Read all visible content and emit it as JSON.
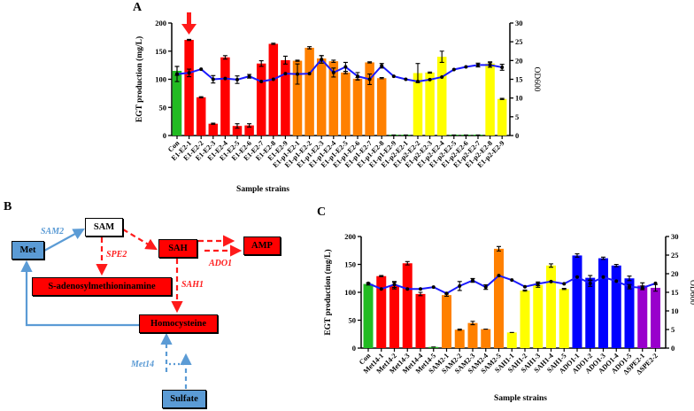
{
  "panels": {
    "a": "A",
    "b": "B",
    "c": "C"
  },
  "colors": {
    "control": "#22bb22",
    "red": "#ff0000",
    "orange": "#ff8000",
    "yellow": "#ffff00",
    "blue": "#0000ff",
    "purple": "#9900cc",
    "od_line": "#1a1aff",
    "low": "#22bb22"
  },
  "pathway": {
    "nodes": {
      "sam": "SAM",
      "met": "Met",
      "sah": "SAH",
      "amp": "AMP",
      "sadm": "S-adenosylmethioninamine",
      "hcy": "Homocysteine",
      "sulfate": "Sulfate"
    },
    "enzymes": {
      "sam2": "SAM2",
      "spe2": "SPE2",
      "ado1": "ADO1",
      "sah1": "SAH1",
      "met14": "Met14"
    }
  },
  "chart_data": [
    {
      "id": "A",
      "type": "bar+line",
      "ylabel": "EGT production (mg/L)",
      "y2label": "OD600",
      "xlabel": "Sample strains",
      "ylim": [
        0,
        200
      ],
      "yticks": [
        0,
        50,
        100,
        150,
        200
      ],
      "y2lim": [
        0,
        30
      ],
      "y2ticks": [
        0,
        5,
        10,
        15,
        20,
        25,
        30
      ],
      "highlight": "E1-E2-1",
      "categories": [
        "Con",
        "E1-E2-1",
        "E1-E2-2",
        "E1-E2-3",
        "E1-E2-4",
        "E1-E2-5",
        "E1-E2-6",
        "E1-E2-7",
        "E1-E2-8",
        "E1-E2-9",
        "E1-p1-E2-1",
        "E1-p1-E2-2",
        "E1-p1-E2-3",
        "E1-p1-E2-4",
        "E1-p1-E2-5",
        "E1-p1-E2-6",
        "E1-p1-E2-7",
        "E1-p1-E2-8",
        "E1-p1-E2-9",
        "E1-p2-E2-1",
        "E1-p2-E2-2",
        "E1-p2-E2-3",
        "E1-p2-E2-4",
        "E1-p2-E2-5",
        "E1-p2-E2-6",
        "E1-p2-E2-7",
        "E1-p2-E2-8",
        "E1-p2-E2-9"
      ],
      "bar_colors": [
        "control",
        "red",
        "red",
        "red",
        "red",
        "red",
        "red",
        "red",
        "red",
        "red",
        "orange",
        "orange",
        "orange",
        "orange",
        "orange",
        "orange",
        "orange",
        "orange",
        "low",
        "low",
        "yellow",
        "yellow",
        "yellow",
        "low",
        "low",
        "low",
        "yellow",
        "yellow"
      ],
      "egt": [
        115,
        170,
        68,
        21,
        139,
        17,
        18,
        128,
        163,
        134,
        133,
        156,
        137,
        132,
        112,
        101,
        130,
        102,
        1,
        1,
        111,
        112,
        140,
        1,
        1,
        1,
        128,
        65
      ],
      "egt_err": [
        8,
        1,
        1,
        1,
        3,
        4,
        3,
        5,
        1,
        7,
        1,
        2,
        5,
        2,
        2,
        2,
        1,
        1,
        0,
        0,
        17,
        1,
        10,
        0,
        0,
        0,
        3,
        1
      ],
      "od600": [
        16.4,
        16.7,
        17.7,
        15.0,
        15.2,
        14.9,
        15.8,
        14.4,
        15.0,
        16.5,
        16.4,
        16.5,
        20.3,
        16.8,
        18.3,
        15.8,
        15.0,
        18.6,
        15.8,
        15.0,
        14.4,
        14.9,
        15.6,
        17.6,
        18.3,
        18.8,
        18.8,
        18.2
      ],
      "od600_err": [
        2,
        1,
        0.3,
        1,
        0.3,
        1,
        0.5,
        0.3,
        0.3,
        0.3,
        2.7,
        0.3,
        1,
        1.2,
        1.2,
        1,
        1.4,
        0.6,
        0.2,
        0.2,
        0.3,
        0.3,
        0.3,
        0.2,
        0.2,
        0.5,
        0.6,
        0.8
      ]
    },
    {
      "id": "C",
      "type": "bar+line",
      "ylabel": "EGT production (mg/L)",
      "y2label": "OD600",
      "xlabel": "Sample strains",
      "ylim": [
        0,
        200
      ],
      "yticks": [
        0,
        50,
        100,
        150,
        200
      ],
      "y2lim": [
        0,
        30
      ],
      "y2ticks": [
        0,
        5,
        10,
        15,
        20,
        25,
        30
      ],
      "categories": [
        "Con",
        "Met14-1",
        "Met14-2",
        "Met14-3",
        "Met14-4",
        "Met14-5",
        "SAM2-1",
        "SAM2-2",
        "SAM2-3",
        "SAM2-4",
        "SAM2-5",
        "SAH1-1",
        "SAH1-2",
        "SAH1-3",
        "SAH1-4",
        "SAH1-5",
        "ADO1-1",
        "ADO1-2",
        "ADO1-3",
        "ADO1-4",
        "ADO1-5",
        "ΔSPE2-1",
        "ΔSPE2-2"
      ],
      "bar_colors": [
        "control",
        "red",
        "red",
        "red",
        "red",
        "low",
        "orange",
        "orange",
        "orange",
        "orange",
        "orange",
        "yellow",
        "yellow",
        "yellow",
        "yellow",
        "yellow",
        "blue",
        "blue",
        "blue",
        "blue",
        "blue",
        "purple",
        "purple"
      ],
      "egt": [
        115,
        129,
        112,
        152,
        97,
        2,
        95,
        33,
        45,
        34,
        178,
        28,
        103,
        113,
        148,
        106,
        166,
        126,
        161,
        148,
        125,
        112,
        108
      ],
      "egt_err": [
        2,
        1,
        6,
        3,
        3,
        0,
        2,
        1,
        3,
        0,
        4,
        0,
        1,
        4,
        3,
        1,
        3,
        4,
        2,
        2,
        4,
        5,
        6
      ],
      "od600": [
        17.4,
        15.9,
        17.1,
        15.9,
        15.9,
        16.4,
        14.7,
        16.7,
        18.2,
        16.4,
        19.5,
        18.3,
        16.5,
        17.3,
        17.9,
        17.3,
        19.1,
        17.4,
        19.1,
        18.0,
        16.5,
        16.2,
        17.4
      ],
      "od600_err": [
        0.3,
        0.3,
        0.8,
        0.3,
        0.3,
        0.3,
        0.3,
        1.2,
        0.5,
        0.6,
        0.3,
        0.2,
        0.3,
        0.5,
        0.3,
        0.3,
        0.3,
        0.8,
        0.3,
        0.3,
        0.6,
        0.5,
        0.3
      ]
    }
  ]
}
